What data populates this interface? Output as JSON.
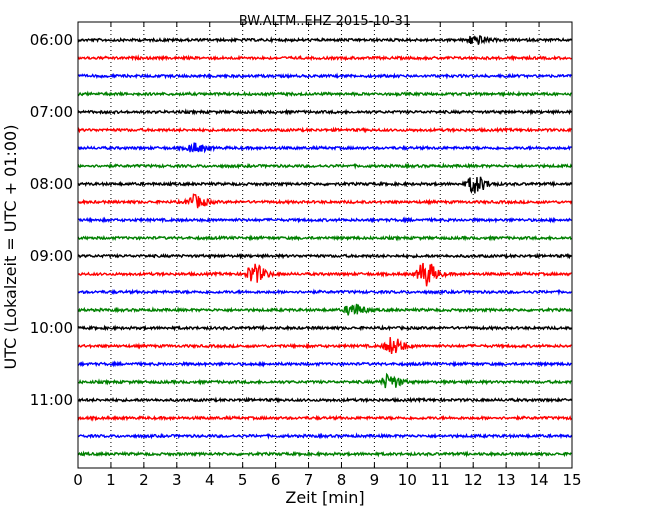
{
  "chart_data": {
    "type": "line",
    "title": "BW.ALTM..EHZ 2015-10-31",
    "xlabel": "Zeit  [min]",
    "ylabel": "UTC (Lokalzeit = UTC + 01:00)",
    "xlim": [
      0,
      15
    ],
    "x_ticks": [
      "0",
      "1",
      "2",
      "3",
      "4",
      "5",
      "6",
      "7",
      "8",
      "9",
      "10",
      "11",
      "12",
      "13",
      "14",
      "15"
    ],
    "y_tick_labels": [
      "06:00",
      "07:00",
      "08:00",
      "09:00",
      "10:00",
      "11:00"
    ],
    "grid": "vertical dotted",
    "trace_colors": [
      "#000000",
      "#ff0000",
      "#0000ff",
      "#008000"
    ],
    "series": [
      {
        "start": "06:00",
        "color": "#000000",
        "events": [
          {
            "minute": 12.0,
            "amplitude": 0.35
          }
        ]
      },
      {
        "start": "06:15",
        "color": "#ff0000",
        "events": []
      },
      {
        "start": "06:30",
        "color": "#0000ff",
        "events": []
      },
      {
        "start": "06:45",
        "color": "#008000",
        "events": []
      },
      {
        "start": "07:00",
        "color": "#000000",
        "events": []
      },
      {
        "start": "07:15",
        "color": "#ff0000",
        "events": []
      },
      {
        "start": "07:30",
        "color": "#0000ff",
        "events": [
          {
            "minute": 3.5,
            "amplitude": 0.35
          }
        ]
      },
      {
        "start": "07:45",
        "color": "#008000",
        "events": []
      },
      {
        "start": "08:00",
        "color": "#000000",
        "events": [
          {
            "minute": 12.0,
            "amplitude": 0.7
          }
        ]
      },
      {
        "start": "08:15",
        "color": "#ff0000",
        "events": [
          {
            "minute": 3.5,
            "amplitude": 0.5
          }
        ]
      },
      {
        "start": "08:30",
        "color": "#0000ff",
        "events": []
      },
      {
        "start": "08:45",
        "color": "#008000",
        "events": []
      },
      {
        "start": "09:00",
        "color": "#000000",
        "events": []
      },
      {
        "start": "09:15",
        "color": "#ff0000",
        "events": [
          {
            "minute": 5.3,
            "amplitude": 0.75
          },
          {
            "minute": 10.5,
            "amplitude": 1.0
          }
        ]
      },
      {
        "start": "09:30",
        "color": "#0000ff",
        "events": []
      },
      {
        "start": "09:45",
        "color": "#008000",
        "events": [
          {
            "minute": 8.3,
            "amplitude": 0.5
          }
        ]
      },
      {
        "start": "10:00",
        "color": "#000000",
        "events": []
      },
      {
        "start": "10:15",
        "color": "#ff0000",
        "events": [
          {
            "minute": 9.5,
            "amplitude": 0.65
          }
        ]
      },
      {
        "start": "10:30",
        "color": "#0000ff",
        "events": []
      },
      {
        "start": "10:45",
        "color": "#008000",
        "events": [
          {
            "minute": 9.4,
            "amplitude": 0.55
          }
        ]
      },
      {
        "start": "11:00",
        "color": "#000000",
        "events": []
      },
      {
        "start": "11:15",
        "color": "#ff0000",
        "events": []
      },
      {
        "start": "11:30",
        "color": "#0000ff",
        "events": []
      },
      {
        "start": "11:45",
        "color": "#008000",
        "events": []
      }
    ]
  }
}
